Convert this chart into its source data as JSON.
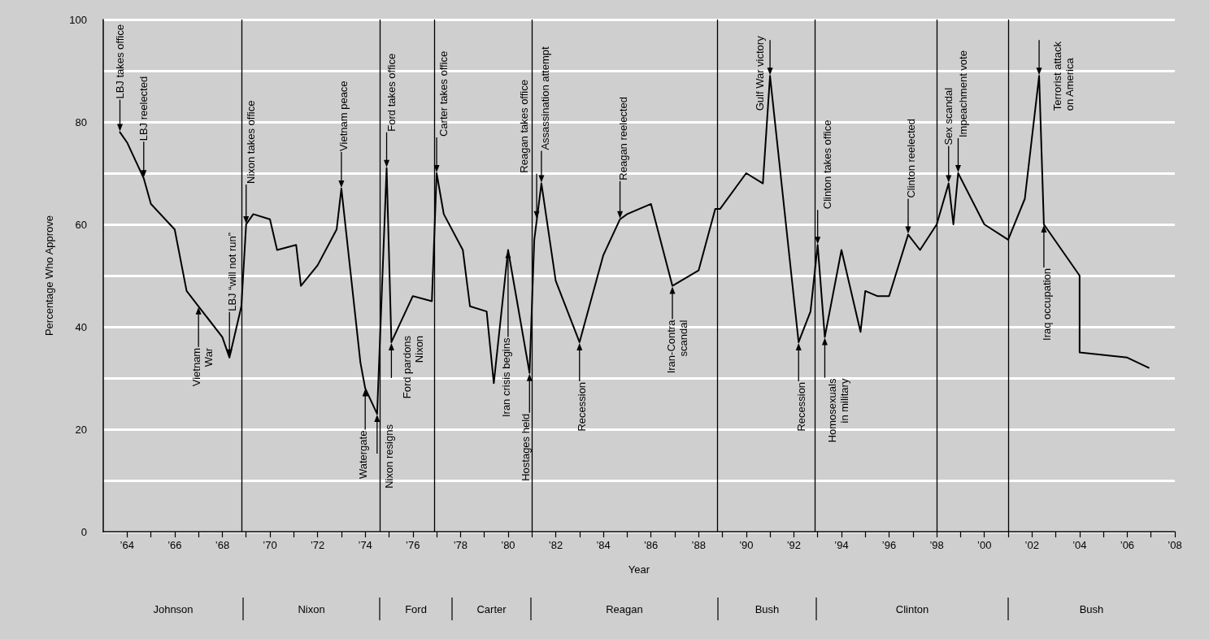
{
  "chart_data": {
    "type": "line",
    "xlabel": "Year",
    "ylabel": "Percentage Who Approve",
    "color": "#000000",
    "marker": "none",
    "line_style": "solid",
    "grid": "y",
    "x": [
      1963.7,
      1964.0,
      1964.7,
      1965.0,
      1966.0,
      1966.5,
      1967.0,
      1968.0,
      1968.3,
      1968.8,
      1969.0,
      1969.3,
      1970.0,
      1970.3,
      1971.1,
      1971.3,
      1972.0,
      1972.8,
      1973.0,
      1973.8,
      1974.0,
      1974.5,
      1974.9,
      1975.1,
      1976.0,
      1976.8,
      1977.0,
      1977.3,
      1978.1,
      1978.4,
      1979.1,
      1979.4,
      1980.0,
      1980.9,
      1981.1,
      1981.4,
      1982.0,
      1983.0,
      1984.0,
      1984.7,
      1985.0,
      1986.0,
      1986.9,
      1988.0,
      1988.7,
      1988.9,
      1990.0,
      1990.7,
      1991.0,
      1992.2,
      1992.7,
      1993.0,
      1993.3,
      1994.0,
      1994.8,
      1995.0,
      1995.5,
      1996.0,
      1996.8,
      1997.3,
      1998.0,
      1998.5,
      1998.7,
      1998.9,
      2000.0,
      2001.0,
      2001.7,
      2002.3,
      2002.5,
      2004.0,
      2004.0,
      2006.0,
      2006.9
    ],
    "values": [
      78,
      76,
      69,
      64,
      59,
      47,
      44,
      38,
      34,
      44,
      60,
      62,
      61,
      55,
      56,
      48,
      52,
      59,
      67,
      33,
      28,
      23,
      71,
      37,
      46,
      45,
      70,
      62,
      55,
      44,
      43,
      29,
      55,
      31,
      57,
      68,
      49,
      37,
      54,
      61,
      62,
      64,
      48,
      51,
      63,
      63,
      70,
      68,
      89,
      37,
      43,
      56,
      38,
      55,
      39,
      47,
      46,
      46,
      58,
      55,
      60,
      68,
      60,
      70,
      60,
      57,
      65,
      89,
      60,
      50,
      35,
      34,
      32
    ],
    "xlim": [
      1963,
      2008
    ],
    "xticks": [
      {
        "value": 1964,
        "label": "’64"
      },
      {
        "value": 1965,
        "label": null
      },
      {
        "value": 1966,
        "label": "’66"
      },
      {
        "value": 1967,
        "label": null
      },
      {
        "value": 1968,
        "label": "’68"
      },
      {
        "value": 1969,
        "label": null
      },
      {
        "value": 1970,
        "label": "’70"
      },
      {
        "value": 1971,
        "label": null
      },
      {
        "value": 1972,
        "label": "’72"
      },
      {
        "value": 1973,
        "label": null
      },
      {
        "value": 1974,
        "label": "’74"
      },
      {
        "value": 1975,
        "label": null
      },
      {
        "value": 1976,
        "label": "’76"
      },
      {
        "value": 1977,
        "label": null
      },
      {
        "value": 1978,
        "label": "’78"
      },
      {
        "value": 1979,
        "label": null
      },
      {
        "value": 1980,
        "label": "’80"
      },
      {
        "value": 1981,
        "label": null
      },
      {
        "value": 1982,
        "label": "’82"
      },
      {
        "value": 1983,
        "label": null
      },
      {
        "value": 1984,
        "label": "’84"
      },
      {
        "value": 1985,
        "label": null
      },
      {
        "value": 1986,
        "label": "’86"
      },
      {
        "value": 1987,
        "label": null
      },
      {
        "value": 1988,
        "label": "’88"
      },
      {
        "value": 1989,
        "label": null
      },
      {
        "value": 1990,
        "label": "’90"
      },
      {
        "value": 1991,
        "label": null
      },
      {
        "value": 1992,
        "label": "’92"
      },
      {
        "value": 1993,
        "label": null
      },
      {
        "value": 1994,
        "label": "’94"
      },
      {
        "value": 1995,
        "label": null
      },
      {
        "value": 1996,
        "label": "’96"
      },
      {
        "value": 1997,
        "label": null
      },
      {
        "value": 1998,
        "label": "’98"
      },
      {
        "value": 1999,
        "label": null
      },
      {
        "value": 2000,
        "label": "’00"
      },
      {
        "value": 2001,
        "label": null
      },
      {
        "value": 2002,
        "label": "’02"
      },
      {
        "value": 2003,
        "label": null
      },
      {
        "value": 2004,
        "label": "’04"
      },
      {
        "value": 2005,
        "label": null
      },
      {
        "value": 2006,
        "label": "’06"
      },
      {
        "value": 2007,
        "label": null
      },
      {
        "value": 2008,
        "label": "’08"
      }
    ],
    "ylim": [
      0,
      100
    ],
    "yticks": [
      0,
      {
        "value": 10,
        "label": null
      },
      20,
      {
        "value": 30,
        "label": null
      },
      40,
      {
        "value": 50,
        "label": null
      },
      60,
      {
        "value": 70,
        "label": null
      },
      80,
      {
        "value": 90,
        "label": null
      },
      100
    ],
    "ref_lines": [
      {
        "axis": "x",
        "value": 1968.8,
        "label": null,
        "color": "#000000"
      },
      {
        "axis": "x",
        "value": 1974.6,
        "label": null,
        "color": "#000000"
      },
      {
        "axis": "x",
        "value": 1976.9,
        "label": null,
        "color": "#000000"
      },
      {
        "axis": "x",
        "value": 1981.0,
        "label": null,
        "color": "#000000"
      },
      {
        "axis": "x",
        "value": 1988.8,
        "label": null,
        "color": "#000000"
      },
      {
        "axis": "x",
        "value": 1992.9,
        "label": null,
        "color": "#000000"
      },
      {
        "axis": "x",
        "value": 1998.0,
        "label": null,
        "color": "#000000"
      },
      {
        "axis": "x",
        "value": 2001.0,
        "label": null,
        "color": "#000000"
      }
    ],
    "annotations": [
      {
        "text": "LBJ takes office",
        "x": 1963.7,
        "y": 78
      },
      {
        "text": "LBJ reelected",
        "x": 1964.7,
        "y": 69
      },
      {
        "text": "Vietnam\nWar",
        "x": 1967.0,
        "y": 44
      },
      {
        "text": "LBJ “will not run”",
        "x": 1968.3,
        "y": 34
      },
      {
        "text": "Nixon takes office",
        "x": 1969.0,
        "y": 60
      },
      {
        "text": "Vietnam peace",
        "x": 1973.0,
        "y": 67
      },
      {
        "text": "Watergate",
        "x": 1974.0,
        "y": 28
      },
      {
        "text": "Nixon resigns",
        "x": 1974.5,
        "y": 23
      },
      {
        "text": "Ford takes office",
        "x": 1974.9,
        "y": 71
      },
      {
        "text": "Ford pardons\nNixon",
        "x": 1975.1,
        "y": 37
      },
      {
        "text": "Carter takes office",
        "x": 1977.0,
        "y": 70
      },
      {
        "text": "Iran crisis begins",
        "x": 1980.0,
        "y": 55
      },
      {
        "text": "Hostages held",
        "x": 1980.9,
        "y": 31
      },
      {
        "text": "Reagan takes office",
        "x": 1981.2,
        "y": 61
      },
      {
        "text": "Assassination attempt",
        "x": 1981.4,
        "y": 68
      },
      {
        "text": "Recession",
        "x": 1983.0,
        "y": 37
      },
      {
        "text": "Reagan reelected",
        "x": 1984.7,
        "y": 61
      },
      {
        "text": "Iran-Contra\nscandal",
        "x": 1986.9,
        "y": 48
      },
      {
        "text": "Gulf War victory",
        "x": 1991.0,
        "y": 89
      },
      {
        "text": "Recession",
        "x": 1992.2,
        "y": 37
      },
      {
        "text": "Clinton takes office",
        "x": 1993.0,
        "y": 56
      },
      {
        "text": "Homosexuals\nin military",
        "x": 1993.3,
        "y": 38
      },
      {
        "text": "Clinton reelected",
        "x": 1996.8,
        "y": 58
      },
      {
        "text": "Sex scandal",
        "x": 1998.5,
        "y": 68
      },
      {
        "text": "Impeachment vote",
        "x": 1998.9,
        "y": 70
      },
      {
        "text": "Terrorist attack\non America",
        "x": 2002.3,
        "y": 89
      },
      {
        "text": "Iraq occupation",
        "x": 2002.5,
        "y": 60
      },
      "Johnson",
      "Nixon",
      "Ford",
      "Carter",
      "Reagan",
      "Bush",
      "Clinton",
      "Bush"
    ]
  }
}
